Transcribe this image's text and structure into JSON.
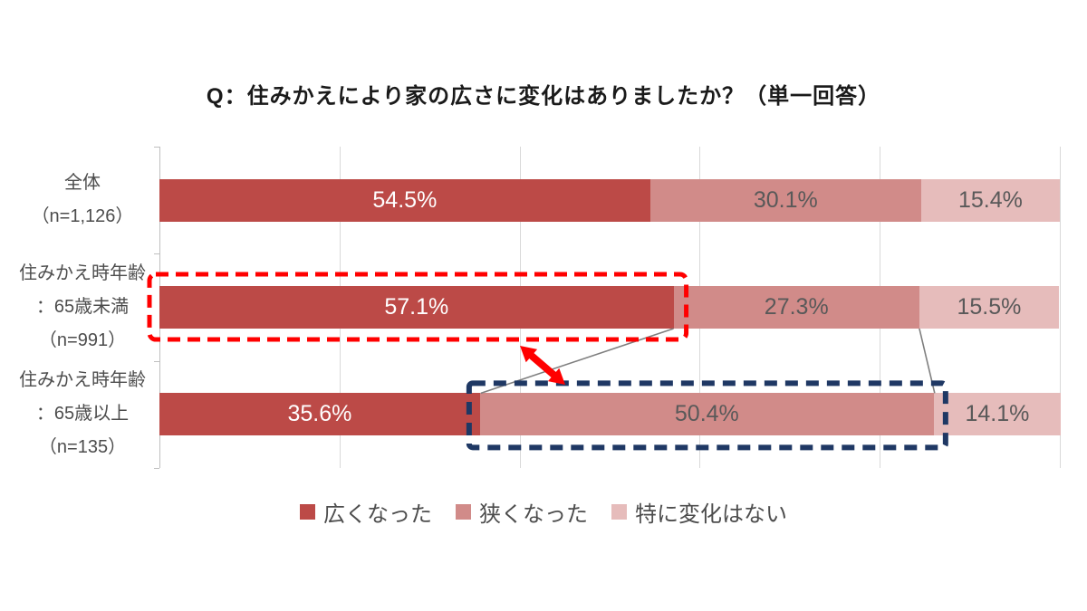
{
  "title": "Q：住みかえにより家の広さに変化はありましたか？（単一回答）",
  "chart_data": {
    "type": "bar",
    "variant": "horizontal-stacked",
    "unit": "%",
    "xlim": [
      0,
      100
    ],
    "gridline_step": 20,
    "grid": true,
    "legend_position": "bottom",
    "categories": [
      {
        "label_lines": [
          "全体",
          "（n=1,126）"
        ]
      },
      {
        "label_lines": [
          "住みかえ時年齢",
          "：65歳未満",
          "（n=991）"
        ]
      },
      {
        "label_lines": [
          "住みかえ時年齢",
          "：65歳以上",
          "（n=135）"
        ]
      }
    ],
    "series": [
      {
        "name": "広くなった",
        "color": "#bc4a47",
        "value_label_color": "#ffffff",
        "values": [
          54.5,
          57.1,
          35.6
        ]
      },
      {
        "name": "狭くなった",
        "color": "#d18b89",
        "value_label_color": "#595959",
        "values": [
          30.1,
          27.3,
          50.4
        ]
      },
      {
        "name": "特に変化はない",
        "color": "#e6bcbb",
        "value_label_color": "#595959",
        "values": [
          15.4,
          15.5,
          14.1
        ]
      }
    ],
    "value_label_format": "0.0%",
    "annotations": {
      "red_dashed_box": {
        "category_index": 1,
        "segment_index": 0,
        "color": "#ff0000",
        "highlighted_value": 57.1
      },
      "navy_dashed_box": {
        "category_index": 2,
        "segment_index": 1,
        "color": "#1f3864",
        "highlighted_value": 50.4
      },
      "double_arrow": {
        "color": "#ff0000"
      },
      "connector_lines": {
        "color": "#7f7f7f",
        "count": 2
      }
    },
    "colors": {
      "gridline": "#d9d9d9",
      "axis": "#bfbfbf",
      "row_label_text": "#4d4d4d",
      "legend_text": "#4d4d4d"
    }
  }
}
